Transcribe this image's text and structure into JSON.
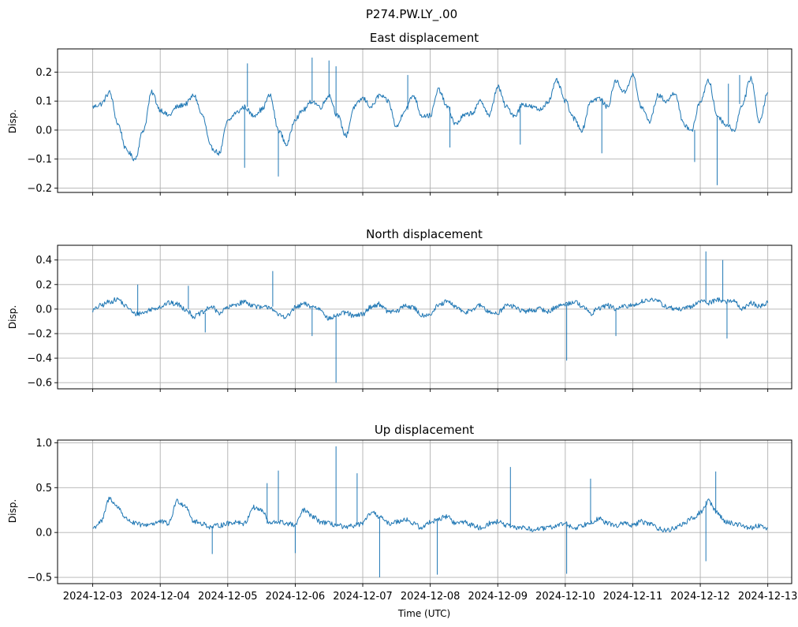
{
  "figure_title": "P274.PW.LY_.00",
  "x_axis_label": "Time (UTC)",
  "colors": {
    "line": "#1f77b4",
    "grid": "#b0b0b0",
    "axes": "#000000"
  },
  "x_ticks": [
    "2024-12-03",
    "2024-12-04",
    "2024-12-05",
    "2024-12-06",
    "2024-12-07",
    "2024-12-08",
    "2024-12-09",
    "2024-12-10",
    "2024-12-11",
    "2024-12-12",
    "2024-12-13"
  ],
  "chart_data": [
    {
      "type": "line",
      "title": "East displacement",
      "ylabel": "Disp.",
      "xlim": [
        "2024-12-02T11:30",
        "2024-12-13T08:30"
      ],
      "ylim": [
        -0.215,
        0.28
      ],
      "yticks": [
        -0.2,
        -0.1,
        0.0,
        0.1,
        0.2
      ],
      "ytick_labels": [
        "−0.2",
        "−0.1",
        "0.0",
        "0.1",
        "0.2"
      ],
      "grid": true,
      "series": [
        {
          "x": [
            "2024-12-03T00:00",
            "2024-12-03T03:00",
            "2024-12-03T06:00",
            "2024-12-03T09:00",
            "2024-12-03T12:00",
            "2024-12-03T15:00",
            "2024-12-03T18:00",
            "2024-12-03T21:00",
            "2024-12-04T00:00",
            "2024-12-04T03:00",
            "2024-12-04T06:00",
            "2024-12-04T09:00",
            "2024-12-04T12:00",
            "2024-12-04T15:00",
            "2024-12-04T18:00",
            "2024-12-04T21:00",
            "2024-12-05T00:00",
            "2024-12-05T03:00",
            "2024-12-05T06:00",
            "2024-12-05T09:00",
            "2024-12-05T12:00",
            "2024-12-05T15:00",
            "2024-12-05T18:00",
            "2024-12-05T21:00",
            "2024-12-06T00:00",
            "2024-12-06T03:00",
            "2024-12-06T06:00",
            "2024-12-06T09:00",
            "2024-12-06T12:00",
            "2024-12-06T15:00",
            "2024-12-06T18:00",
            "2024-12-06T21:00",
            "2024-12-07T00:00",
            "2024-12-07T03:00",
            "2024-12-07T06:00",
            "2024-12-07T09:00",
            "2024-12-07T12:00",
            "2024-12-07T15:00",
            "2024-12-07T18:00",
            "2024-12-07T21:00",
            "2024-12-08T00:00",
            "2024-12-08T03:00",
            "2024-12-08T06:00",
            "2024-12-08T09:00",
            "2024-12-08T12:00",
            "2024-12-08T15:00",
            "2024-12-08T18:00",
            "2024-12-08T21:00",
            "2024-12-09T00:00",
            "2024-12-09T03:00",
            "2024-12-09T06:00",
            "2024-12-09T09:00",
            "2024-12-09T12:00",
            "2024-12-09T15:00",
            "2024-12-09T18:00",
            "2024-12-09T21:00",
            "2024-12-10T00:00",
            "2024-12-10T03:00",
            "2024-12-10T06:00",
            "2024-12-10T09:00",
            "2024-12-10T12:00",
            "2024-12-10T15:00",
            "2024-12-10T18:00",
            "2024-12-10T21:00",
            "2024-12-11T00:00",
            "2024-12-11T03:00",
            "2024-12-11T06:00",
            "2024-12-11T09:00",
            "2024-12-11T12:00",
            "2024-12-11T15:00",
            "2024-12-11T18:00",
            "2024-12-11T21:00",
            "2024-12-12T00:00",
            "2024-12-12T03:00",
            "2024-12-12T06:00",
            "2024-12-12T09:00",
            "2024-12-12T12:00",
            "2024-12-12T15:00",
            "2024-12-12T18:00",
            "2024-12-12T21:00",
            "2024-12-13T00:00"
          ],
          "values": [
            0.08,
            0.09,
            0.13,
            0.02,
            -0.07,
            -0.1,
            0.0,
            0.13,
            0.07,
            0.05,
            0.08,
            0.09,
            0.12,
            0.05,
            -0.06,
            -0.08,
            0.03,
            0.06,
            0.08,
            0.05,
            0.07,
            0.12,
            0.0,
            -0.05,
            0.04,
            0.07,
            0.1,
            0.08,
            0.12,
            0.05,
            -0.02,
            0.08,
            0.11,
            0.08,
            0.12,
            0.1,
            0.01,
            0.07,
            0.12,
            0.05,
            0.05,
            0.14,
            0.08,
            0.02,
            0.05,
            0.06,
            0.1,
            0.05,
            0.15,
            0.08,
            0.05,
            0.09,
            0.08,
            0.07,
            0.1,
            0.17,
            0.1,
            0.04,
            0.0,
            0.1,
            0.11,
            0.08,
            0.17,
            0.13,
            0.19,
            0.08,
            0.03,
            0.12,
            0.1,
            0.13,
            0.02,
            0.0,
            0.1,
            0.17,
            0.05,
            0.02,
            0.0,
            0.09,
            0.18,
            0.03,
            0.13
          ]
        }
      ],
      "spikes": [
        {
          "x": "2024-12-05T06:00",
          "y": -0.13
        },
        {
          "x": "2024-12-05T07:00",
          "y": 0.23
        },
        {
          "x": "2024-12-05T18:00",
          "y": -0.16
        },
        {
          "x": "2024-12-06T06:00",
          "y": 0.25
        },
        {
          "x": "2024-12-06T12:00",
          "y": 0.24
        },
        {
          "x": "2024-12-06T14:30",
          "y": 0.22
        },
        {
          "x": "2024-12-07T16:00",
          "y": 0.19
        },
        {
          "x": "2024-12-08T07:00",
          "y": -0.06
        },
        {
          "x": "2024-12-09T08:00",
          "y": -0.05
        },
        {
          "x": "2024-12-10T13:00",
          "y": -0.08
        },
        {
          "x": "2024-12-11T22:00",
          "y": -0.11
        },
        {
          "x": "2024-12-12T06:00",
          "y": -0.19
        },
        {
          "x": "2024-12-12T10:00",
          "y": 0.16
        },
        {
          "x": "2024-12-12T14:00",
          "y": 0.19
        }
      ]
    },
    {
      "type": "line",
      "title": "North displacement",
      "ylabel": "Disp.",
      "xlim": [
        "2024-12-02T11:30",
        "2024-12-13T08:30"
      ],
      "ylim": [
        -0.65,
        0.52
      ],
      "yticks": [
        -0.6,
        -0.4,
        -0.2,
        0.0,
        0.2,
        0.4
      ],
      "ytick_labels": [
        "−0.6",
        "−0.4",
        "−0.2",
        "0.0",
        "0.2",
        "0.4"
      ],
      "grid": true,
      "series": [
        {
          "x": [
            "2024-12-03T00:00",
            "2024-12-03T03:00",
            "2024-12-03T06:00",
            "2024-12-03T09:00",
            "2024-12-03T12:00",
            "2024-12-03T15:00",
            "2024-12-03T18:00",
            "2024-12-03T21:00",
            "2024-12-04T00:00",
            "2024-12-04T03:00",
            "2024-12-04T06:00",
            "2024-12-04T09:00",
            "2024-12-04T12:00",
            "2024-12-04T15:00",
            "2024-12-04T18:00",
            "2024-12-04T21:00",
            "2024-12-05T00:00",
            "2024-12-05T03:00",
            "2024-12-05T06:00",
            "2024-12-05T09:00",
            "2024-12-05T12:00",
            "2024-12-05T15:00",
            "2024-12-05T18:00",
            "2024-12-05T21:00",
            "2024-12-06T00:00",
            "2024-12-06T03:00",
            "2024-12-06T06:00",
            "2024-12-06T09:00",
            "2024-12-06T12:00",
            "2024-12-06T15:00",
            "2024-12-06T18:00",
            "2024-12-06T21:00",
            "2024-12-07T00:00",
            "2024-12-07T03:00",
            "2024-12-07T06:00",
            "2024-12-07T09:00",
            "2024-12-07T12:00",
            "2024-12-07T15:00",
            "2024-12-07T18:00",
            "2024-12-07T21:00",
            "2024-12-08T00:00",
            "2024-12-08T03:00",
            "2024-12-08T06:00",
            "2024-12-08T09:00",
            "2024-12-08T12:00",
            "2024-12-08T15:00",
            "2024-12-08T18:00",
            "2024-12-08T21:00",
            "2024-12-09T00:00",
            "2024-12-09T03:00",
            "2024-12-09T06:00",
            "2024-12-09T09:00",
            "2024-12-09T12:00",
            "2024-12-09T15:00",
            "2024-12-09T18:00",
            "2024-12-09T21:00",
            "2024-12-10T00:00",
            "2024-12-10T03:00",
            "2024-12-10T06:00",
            "2024-12-10T09:00",
            "2024-12-10T12:00",
            "2024-12-10T15:00",
            "2024-12-10T18:00",
            "2024-12-10T21:00",
            "2024-12-11T00:00",
            "2024-12-11T03:00",
            "2024-12-11T06:00",
            "2024-12-11T09:00",
            "2024-12-11T12:00",
            "2024-12-11T15:00",
            "2024-12-11T18:00",
            "2024-12-11T21:00",
            "2024-12-12T00:00",
            "2024-12-12T03:00",
            "2024-12-12T06:00",
            "2024-12-12T09:00",
            "2024-12-12T12:00",
            "2024-12-12T15:00",
            "2024-12-12T18:00",
            "2024-12-12T21:00",
            "2024-12-13T00:00"
          ],
          "values": [
            -0.01,
            0.03,
            0.06,
            0.08,
            0.02,
            -0.04,
            -0.03,
            0.0,
            0.02,
            0.05,
            0.04,
            0.0,
            -0.06,
            -0.03,
            0.02,
            -0.03,
            0.01,
            0.04,
            0.06,
            0.03,
            0.01,
            0.02,
            -0.05,
            -0.06,
            0.01,
            0.04,
            0.02,
            0.0,
            -0.08,
            -0.05,
            -0.03,
            -0.06,
            -0.04,
            0.02,
            0.04,
            -0.02,
            -0.02,
            0.03,
            0.01,
            -0.05,
            -0.04,
            0.03,
            0.06,
            0.02,
            -0.03,
            0.0,
            0.03,
            -0.03,
            -0.03,
            0.03,
            0.02,
            -0.02,
            -0.01,
            0.0,
            -0.02,
            0.02,
            0.04,
            0.06,
            0.03,
            -0.04,
            0.01,
            0.03,
            0.0,
            0.02,
            0.03,
            0.06,
            0.08,
            0.06,
            0.02,
            0.0,
            0.0,
            0.02,
            0.07,
            0.05,
            0.08,
            0.06,
            0.07,
            0.0,
            0.05,
            0.02,
            0.05
          ]
        }
      ],
      "spikes": [
        {
          "x": "2024-12-03T16:00",
          "y": 0.2
        },
        {
          "x": "2024-12-04T10:00",
          "y": 0.19
        },
        {
          "x": "2024-12-04T16:00",
          "y": -0.19
        },
        {
          "x": "2024-12-05T16:00",
          "y": 0.31
        },
        {
          "x": "2024-12-06T06:00",
          "y": -0.22
        },
        {
          "x": "2024-12-06T14:30",
          "y": -0.6
        },
        {
          "x": "2024-12-10T00:30",
          "y": -0.42
        },
        {
          "x": "2024-12-10T18:00",
          "y": -0.22
        },
        {
          "x": "2024-12-12T02:00",
          "y": 0.47
        },
        {
          "x": "2024-12-12T08:00",
          "y": 0.4
        },
        {
          "x": "2024-12-12T09:30",
          "y": -0.24
        }
      ]
    },
    {
      "type": "line",
      "title": "Up displacement",
      "ylabel": "Disp.",
      "xlim": [
        "2024-12-02T11:30",
        "2024-12-13T08:30"
      ],
      "ylim": [
        -0.57,
        1.03
      ],
      "yticks": [
        -0.5,
        0.0,
        0.5,
        1.0
      ],
      "ytick_labels": [
        "−0.5",
        "0.0",
        "0.5",
        "1.0"
      ],
      "grid": true,
      "series": [
        {
          "x": [
            "2024-12-03T00:00",
            "2024-12-03T03:00",
            "2024-12-03T06:00",
            "2024-12-03T09:00",
            "2024-12-03T12:00",
            "2024-12-03T15:00",
            "2024-12-03T18:00",
            "2024-12-03T21:00",
            "2024-12-04T00:00",
            "2024-12-04T03:00",
            "2024-12-04T06:00",
            "2024-12-04T09:00",
            "2024-12-04T12:00",
            "2024-12-04T15:00",
            "2024-12-04T18:00",
            "2024-12-04T21:00",
            "2024-12-05T00:00",
            "2024-12-05T03:00",
            "2024-12-05T06:00",
            "2024-12-05T09:00",
            "2024-12-05T12:00",
            "2024-12-05T15:00",
            "2024-12-05T18:00",
            "2024-12-05T21:00",
            "2024-12-06T00:00",
            "2024-12-06T03:00",
            "2024-12-06T06:00",
            "2024-12-06T09:00",
            "2024-12-06T12:00",
            "2024-12-06T15:00",
            "2024-12-06T18:00",
            "2024-12-06T21:00",
            "2024-12-07T00:00",
            "2024-12-07T03:00",
            "2024-12-07T06:00",
            "2024-12-07T09:00",
            "2024-12-07T12:00",
            "2024-12-07T15:00",
            "2024-12-07T18:00",
            "2024-12-07T21:00",
            "2024-12-08T00:00",
            "2024-12-08T03:00",
            "2024-12-08T06:00",
            "2024-12-08T09:00",
            "2024-12-08T12:00",
            "2024-12-08T15:00",
            "2024-12-08T18:00",
            "2024-12-08T21:00",
            "2024-12-09T00:00",
            "2024-12-09T03:00",
            "2024-12-09T06:00",
            "2024-12-09T09:00",
            "2024-12-09T12:00",
            "2024-12-09T15:00",
            "2024-12-09T18:00",
            "2024-12-09T21:00",
            "2024-12-10T00:00",
            "2024-12-10T03:00",
            "2024-12-10T06:00",
            "2024-12-10T09:00",
            "2024-12-10T12:00",
            "2024-12-10T15:00",
            "2024-12-10T18:00",
            "2024-12-10T21:00",
            "2024-12-11T00:00",
            "2024-12-11T03:00",
            "2024-12-11T06:00",
            "2024-12-11T09:00",
            "2024-12-11T12:00",
            "2024-12-11T15:00",
            "2024-12-11T18:00",
            "2024-12-11T21:00",
            "2024-12-12T00:00",
            "2024-12-12T03:00",
            "2024-12-12T06:00",
            "2024-12-12T09:00",
            "2024-12-12T12:00",
            "2024-12-12T15:00",
            "2024-12-12T18:00",
            "2024-12-12T21:00",
            "2024-12-13T00:00"
          ],
          "values": [
            0.05,
            0.12,
            0.38,
            0.28,
            0.15,
            0.1,
            0.08,
            0.1,
            0.12,
            0.1,
            0.35,
            0.3,
            0.12,
            0.1,
            0.06,
            0.08,
            0.1,
            0.12,
            0.1,
            0.28,
            0.25,
            0.1,
            0.12,
            0.1,
            0.08,
            0.25,
            0.18,
            0.12,
            0.1,
            0.08,
            0.05,
            0.08,
            0.1,
            0.22,
            0.18,
            0.1,
            0.12,
            0.15,
            0.1,
            0.05,
            0.12,
            0.15,
            0.18,
            0.1,
            0.12,
            0.08,
            0.05,
            0.1,
            0.12,
            0.08,
            0.05,
            0.06,
            0.03,
            0.04,
            0.05,
            0.08,
            0.1,
            0.05,
            0.08,
            0.12,
            0.15,
            0.1,
            0.08,
            0.1,
            0.08,
            0.12,
            0.1,
            0.05,
            0.02,
            0.05,
            0.1,
            0.15,
            0.22,
            0.35,
            0.22,
            0.12,
            0.1,
            0.08,
            0.05,
            0.08,
            0.05
          ]
        }
      ],
      "spikes": [
        {
          "x": "2024-12-04T18:30",
          "y": -0.24
        },
        {
          "x": "2024-12-05T14:00",
          "y": 0.55
        },
        {
          "x": "2024-12-05T18:00",
          "y": 0.69
        },
        {
          "x": "2024-12-06T00:00",
          "y": -0.23
        },
        {
          "x": "2024-12-06T14:30",
          "y": 0.96
        },
        {
          "x": "2024-12-06T22:00",
          "y": 0.66
        },
        {
          "x": "2024-12-07T06:00",
          "y": -0.5
        },
        {
          "x": "2024-12-08T02:30",
          "y": -0.47
        },
        {
          "x": "2024-12-09T04:30",
          "y": 0.73
        },
        {
          "x": "2024-12-10T00:30",
          "y": -0.46
        },
        {
          "x": "2024-12-10T09:00",
          "y": 0.6
        },
        {
          "x": "2024-12-12T02:00",
          "y": -0.32
        },
        {
          "x": "2024-12-12T05:30",
          "y": 0.68
        }
      ]
    }
  ]
}
